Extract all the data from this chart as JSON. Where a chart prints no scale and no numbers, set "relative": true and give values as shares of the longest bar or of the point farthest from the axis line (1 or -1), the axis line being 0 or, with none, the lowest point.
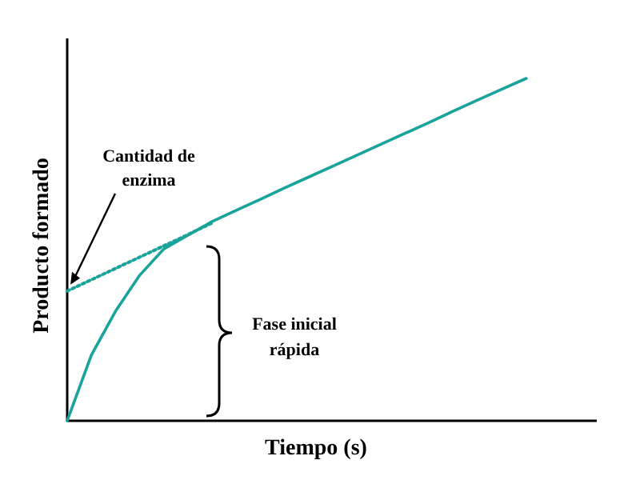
{
  "chart_data": {
    "type": "line",
    "xlabel": "Tiempo (s)",
    "ylabel": "Producto formado",
    "relative": true,
    "categories": [
      null,
      null,
      null,
      null,
      null,
      null,
      null,
      null,
      null,
      null,
      null,
      null,
      null,
      null,
      null,
      null,
      null,
      null,
      null,
      null
    ],
    "series": [
      {
        "color": "#1aa39a",
        "line_style": "solid",
        "values": [
          0,
          0.192,
          0.32,
          0.425,
          0.502,
          0.542,
          0.582,
          0.615,
          0.647,
          0.68,
          0.712,
          0.744,
          0.776,
          0.808,
          0.84,
          0.872,
          0.905,
          0.937,
          0.969,
          1
        ]
      },
      {
        "color": "#1aa39a",
        "line_style": "dotted",
        "values": [
          0.379,
          0.412,
          0.445,
          0.478,
          0.511,
          0.544,
          0.578,
          null,
          null,
          null,
          null,
          null,
          null,
          null,
          null,
          null,
          null,
          null,
          null,
          null
        ]
      }
    ],
    "annotations": [
      "Cantidad de enzima",
      "Fase inicial rápida"
    ]
  }
}
